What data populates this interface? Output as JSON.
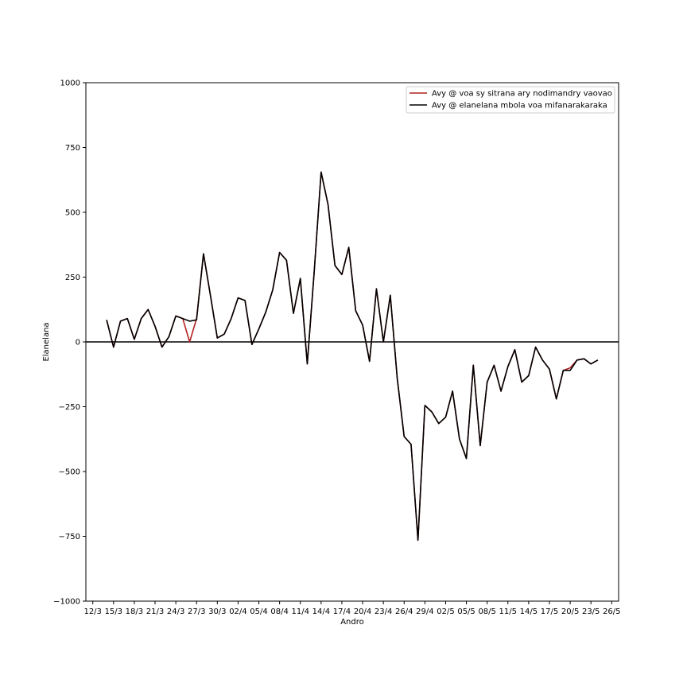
{
  "chart_data": {
    "type": "line",
    "xlabel": "Andro",
    "ylabel": "Elanelana",
    "ylim": [
      -1000,
      1000
    ],
    "yticks": [
      -1000,
      -750,
      -500,
      -250,
      0,
      250,
      500,
      750,
      1000
    ],
    "ytick_labels": [
      "−1000",
      "−750",
      "−500",
      "−250",
      "0",
      "250",
      "500",
      "750",
      "1000"
    ],
    "xtick_labels": [
      "12/3",
      "15/3",
      "18/3",
      "21/3",
      "24/3",
      "27/3",
      "30/3",
      "02/4",
      "05/4",
      "08/4",
      "11/4",
      "14/4",
      "17/4",
      "20/4",
      "23/4",
      "26/4",
      "29/4",
      "02/5",
      "05/5",
      "08/5",
      "11/5",
      "14/5",
      "17/5",
      "20/5",
      "23/5",
      "26/5"
    ],
    "xlim": [
      "2020-03-11",
      "2020-05-27"
    ],
    "grid": false,
    "legend_position": "top-right",
    "hline": 0,
    "x": [
      "2020-03-14",
      "2020-03-15",
      "2020-03-16",
      "2020-03-17",
      "2020-03-18",
      "2020-03-19",
      "2020-03-20",
      "2020-03-21",
      "2020-03-22",
      "2020-03-23",
      "2020-03-24",
      "2020-03-25",
      "2020-03-26",
      "2020-03-27",
      "2020-03-28",
      "2020-03-29",
      "2020-03-30",
      "2020-03-31",
      "2020-04-01",
      "2020-04-02",
      "2020-04-03",
      "2020-04-04",
      "2020-04-05",
      "2020-04-06",
      "2020-04-07",
      "2020-04-08",
      "2020-04-09",
      "2020-04-10",
      "2020-04-11",
      "2020-04-12",
      "2020-04-13",
      "2020-04-14",
      "2020-04-15",
      "2020-04-16",
      "2020-04-17",
      "2020-04-18",
      "2020-04-19",
      "2020-04-20",
      "2020-04-21",
      "2020-04-22",
      "2020-04-23",
      "2020-04-24",
      "2020-04-25",
      "2020-04-26",
      "2020-04-27",
      "2020-04-28",
      "2020-04-29",
      "2020-04-30",
      "2020-05-01",
      "2020-05-02",
      "2020-05-03",
      "2020-05-04",
      "2020-05-05",
      "2020-05-06",
      "2020-05-07",
      "2020-05-08",
      "2020-05-09",
      "2020-05-10",
      "2020-05-11",
      "2020-05-12",
      "2020-05-13",
      "2020-05-14",
      "2020-05-15",
      "2020-05-16",
      "2020-05-17",
      "2020-05-18",
      "2020-05-19",
      "2020-05-20",
      "2020-05-21",
      "2020-05-22",
      "2020-05-23",
      "2020-05-24"
    ],
    "series": [
      {
        "name": "Avy @ voa sy sitrana ary nodimandry vaovao",
        "color": "#b22222",
        "values": [
          85,
          -20,
          80,
          90,
          10,
          90,
          125,
          60,
          -20,
          20,
          100,
          90,
          0,
          90,
          340,
          180,
          15,
          30,
          90,
          170,
          160,
          -10,
          50,
          115,
          200,
          345,
          315,
          110,
          245,
          -85,
          270,
          655,
          530,
          295,
          260,
          365,
          120,
          65,
          -75,
          205,
          0,
          180,
          -140,
          -365,
          -395,
          -765,
          -245,
          -270,
          -315,
          -290,
          -190,
          -375,
          -450,
          -90,
          -400,
          -155,
          -90,
          -190,
          -95,
          -30,
          -155,
          -130,
          -20,
          -70,
          -105,
          -220,
          -110,
          -100,
          -70,
          -65,
          -85,
          -70
        ]
      },
      {
        "name": "Avy @ elanelana mbola voa mifanarakaraka",
        "color": "#000000",
        "values": [
          85,
          -20,
          80,
          90,
          10,
          90,
          125,
          60,
          -20,
          20,
          100,
          90,
          80,
          85,
          340,
          180,
          15,
          30,
          90,
          170,
          160,
          -10,
          50,
          115,
          200,
          345,
          315,
          110,
          245,
          -85,
          270,
          655,
          530,
          295,
          260,
          365,
          120,
          65,
          -75,
          205,
          0,
          180,
          -140,
          -365,
          -395,
          -765,
          -245,
          -270,
          -315,
          -290,
          -190,
          -375,
          -450,
          -90,
          -400,
          -155,
          -90,
          -190,
          -95,
          -30,
          -155,
          -130,
          -20,
          -70,
          -105,
          -220,
          -110,
          -110,
          -70,
          -65,
          -85,
          -70
        ]
      }
    ]
  }
}
